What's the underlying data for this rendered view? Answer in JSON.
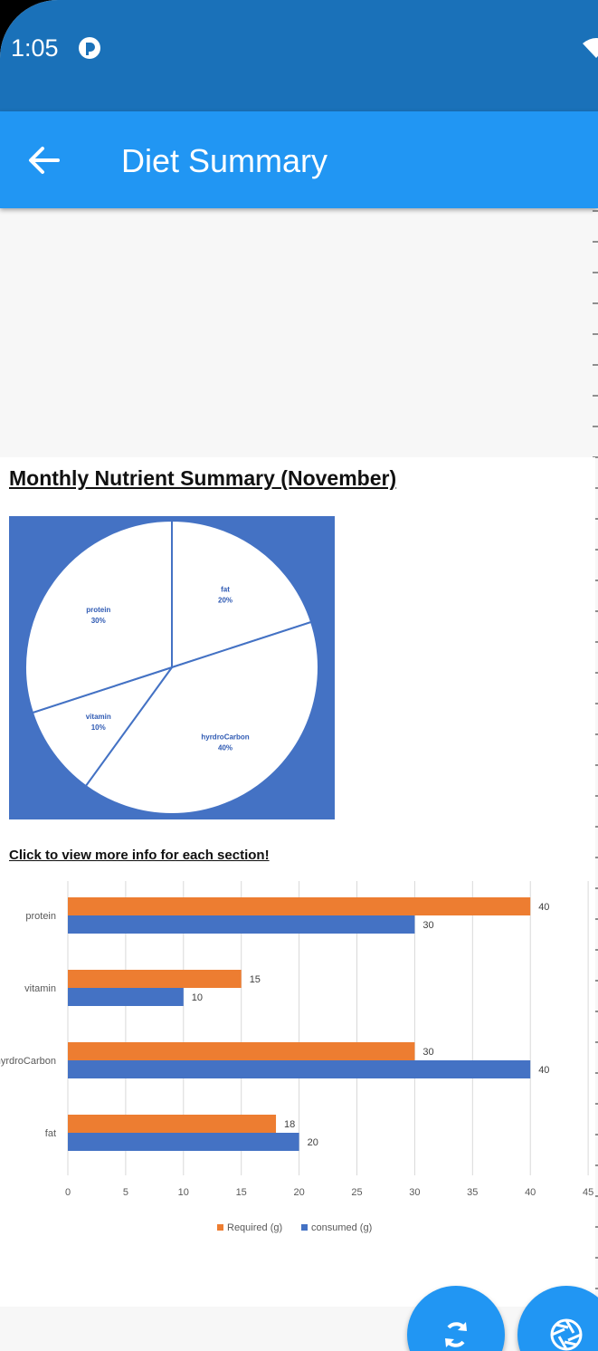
{
  "status_bar": {
    "time": "1:05",
    "app_icon": "notification-icon",
    "wifi_icon": "wifi-icon"
  },
  "app_bar": {
    "title": "Diet Summary",
    "back_icon": "arrow-back-icon"
  },
  "content": {
    "heading": "Monthly Nutrient Summary (November)",
    "link_text": "Click to view more info for each section!"
  },
  "chart_data": [
    {
      "type": "pie",
      "slices": [
        {
          "label": "fat",
          "value": 20,
          "display": "20%"
        },
        {
          "label": "hyrdroCarbon",
          "value": 40,
          "display": "40%"
        },
        {
          "label": "vitamin",
          "value": 10,
          "display": "10%"
        },
        {
          "label": "protein",
          "value": 30,
          "display": "30%"
        }
      ],
      "colors": {
        "background": "#4472c4",
        "slice": "#ffffff",
        "label": "#2f5ab3"
      }
    },
    {
      "type": "bar",
      "orientation": "horizontal",
      "categories": [
        "protein",
        "vitamin",
        "hyrdroCarbon",
        "fat"
      ],
      "series": [
        {
          "name": "Required (g)",
          "values": [
            40,
            15,
            30,
            18
          ],
          "color": "#ed7d31"
        },
        {
          "name": "consumed (g)",
          "values": [
            30,
            10,
            40,
            20
          ],
          "color": "#4472c4"
        }
      ],
      "xticks": [
        0,
        5,
        10,
        15,
        20,
        25,
        30,
        35,
        40,
        45
      ],
      "xlim": [
        0,
        45
      ],
      "legend": "bottom",
      "grid": true
    }
  ],
  "fabs": [
    {
      "name": "refresh-button",
      "icon": "refresh-icon"
    },
    {
      "name": "camera-button",
      "icon": "camera-shutter-icon"
    }
  ]
}
